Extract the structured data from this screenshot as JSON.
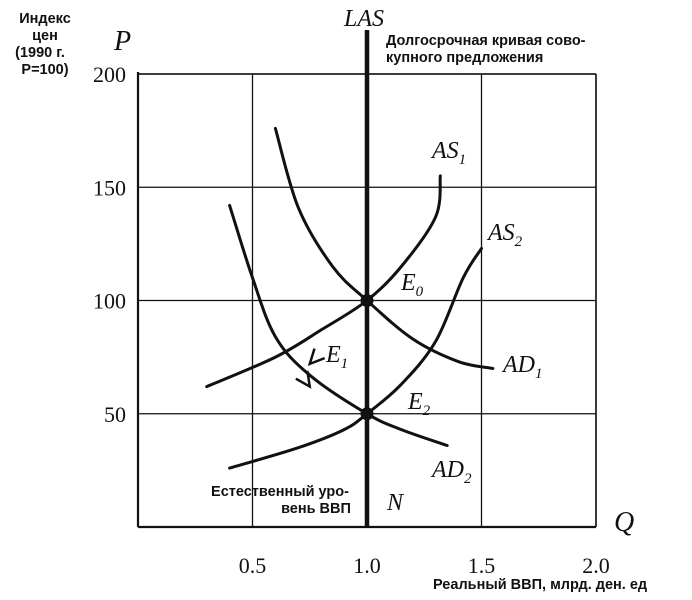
{
  "chart_data": {
    "type": "line",
    "x_axis": {
      "letter": "Q",
      "label": "Реальный ВВП, млрд. ден. ед",
      "ticks": [
        0.5,
        1.0,
        1.5,
        2.0
      ],
      "tick_labels": [
        "0.5",
        "1.0",
        "1.5",
        "2.0"
      ],
      "range": [
        0,
        2.0
      ]
    },
    "y_axis": {
      "letter": "P",
      "label_lines": [
        "Индекс",
        "цен",
        "(1990 г.",
        "P=100)"
      ],
      "ticks": [
        50,
        100,
        150,
        200
      ],
      "tick_labels": [
        "50",
        "100",
        "150",
        "200"
      ],
      "range": [
        0,
        200
      ]
    },
    "grid": true,
    "vertical_line": {
      "name": "LAS",
      "x": 1.0,
      "caption_lines": [
        "Долгосрочная кривая сово-",
        "купного предложения"
      ],
      "bottom_label": "N",
      "bottom_caption_lines": [
        "Естественный уро-",
        "вень ВВП"
      ]
    },
    "series": [
      {
        "name": "AS1",
        "label_main": "AS",
        "label_sub": "1",
        "points": [
          [
            0.3,
            62
          ],
          [
            0.6,
            75
          ],
          [
            0.8,
            87
          ],
          [
            1.0,
            100
          ],
          [
            1.15,
            115
          ],
          [
            1.3,
            137
          ],
          [
            1.32,
            155
          ]
        ]
      },
      {
        "name": "AS2",
        "label_main": "AS",
        "label_sub": "2",
        "points": [
          [
            0.4,
            26
          ],
          [
            0.7,
            35
          ],
          [
            0.9,
            43
          ],
          [
            1.0,
            50
          ],
          [
            1.15,
            63
          ],
          [
            1.3,
            82
          ],
          [
            1.42,
            110
          ],
          [
            1.5,
            123
          ]
        ]
      },
      {
        "name": "AD1",
        "label_main": "AD",
        "label_sub": "1",
        "points": [
          [
            0.6,
            176
          ],
          [
            0.7,
            141
          ],
          [
            0.85,
            115
          ],
          [
            1.0,
            100
          ],
          [
            1.2,
            83
          ],
          [
            1.4,
            73
          ],
          [
            1.55,
            70
          ]
        ]
      },
      {
        "name": "AD2",
        "label_main": "AD",
        "label_sub": "2",
        "points": [
          [
            0.4,
            142
          ],
          [
            0.5,
            110
          ],
          [
            0.6,
            84
          ],
          [
            0.75,
            67
          ],
          [
            1.0,
            50
          ],
          [
            1.15,
            43
          ],
          [
            1.35,
            36
          ]
        ]
      }
    ],
    "points": [
      {
        "name": "E0",
        "label_main": "E",
        "label_sub": "0",
        "x": 1.0,
        "y": 100
      },
      {
        "name": "E1",
        "label_main": "E",
        "label_sub": "1",
        "x": 0.72,
        "y": 78
      },
      {
        "name": "E2",
        "label_main": "E",
        "label_sub": "2",
        "x": 1.0,
        "y": 50
      }
    ],
    "arrows": [
      {
        "from": [
          0.87,
          85
        ],
        "to": [
          0.75,
          72
        ],
        "note": "along AS1"
      },
      {
        "from": [
          0.6,
          84
        ],
        "to": [
          0.75,
          62
        ],
        "note": "along AD2"
      }
    ]
  }
}
